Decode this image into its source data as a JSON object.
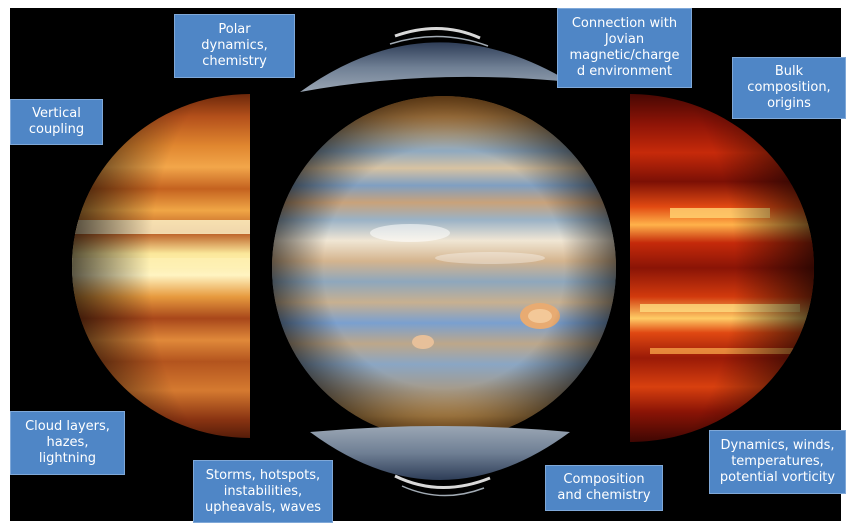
{
  "labels": {
    "polar": "Polar\ndynamics,\nchemistry",
    "magnetic": "Connection with\nJovian\nmagnetic/charge\nd environment",
    "bulk": "Bulk\ncomposition,\norigins",
    "vertical": "Vertical\ncoupling",
    "cloud": "Cloud layers,\nhazes,\nlightning",
    "storms": "Storms, hotspots,\ninstabilities,\nupheavals, waves",
    "composition": "Composition\nand chemistry",
    "dynamics": "Dynamics, winds,\ntemperatures,\npotential vorticity"
  },
  "colors": {
    "label_bg": "#4f86c6",
    "background": "#000000"
  }
}
